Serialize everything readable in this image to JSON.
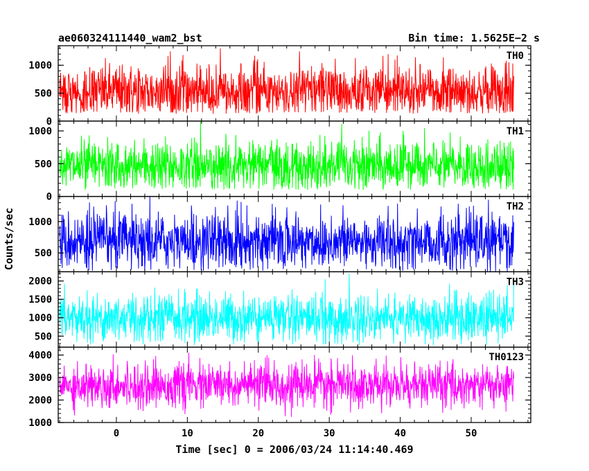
{
  "header": {
    "title": "ae060324111440_wam2_bst",
    "bin_time": "Bin time: 1.5625E−2 s"
  },
  "chart_data": {
    "type": "line",
    "title": "ae060324111440_wam2_bst",
    "xlabel": "Time [sec] 0 = 2006/03/24 11:14:40.469",
    "ylabel": "Counts/sec",
    "xlim": [
      -8.2,
      58.4
    ],
    "x_data_range": [
      -8,
      56
    ],
    "x_ticks": [
      0,
      10,
      20,
      30,
      40,
      50
    ],
    "x_tick_labels": [
      "0",
      "10",
      "20",
      "30",
      "40",
      "50"
    ],
    "x_minor_step": 2,
    "panels": [
      {
        "name": "TH0",
        "color": "#ff0000",
        "ylim": [
          0,
          1350
        ],
        "y_ticks": [
          0,
          500,
          1000
        ],
        "y_tick_labels": [
          "0",
          "500",
          "1000"
        ],
        "minor_step": 100,
        "stats": {
          "mean": 530,
          "sigma": 240,
          "min": 130,
          "max": 1350
        }
      },
      {
        "name": "TH1",
        "color": "#00ff00",
        "ylim": [
          0,
          1150
        ],
        "y_ticks": [
          0,
          500,
          1000
        ],
        "y_tick_labels": [
          "0",
          "500",
          "1000"
        ],
        "minor_step": 100,
        "stats": {
          "mean": 460,
          "sigma": 200,
          "min": 100,
          "max": 1150
        }
      },
      {
        "name": "TH2",
        "color": "#0000ff",
        "ylim": [
          200,
          1400
        ],
        "y_ticks": [
          500,
          1000
        ],
        "y_tick_labels": [
          "500",
          "1000"
        ],
        "minor_step": 100,
        "stats": {
          "mean": 680,
          "sigma": 230,
          "min": 200,
          "max": 1400
        }
      },
      {
        "name": "TH3",
        "color": "#00ffff",
        "ylim": [
          200,
          2250
        ],
        "y_ticks": [
          500,
          1000,
          1500,
          2000
        ],
        "y_tick_labels": [
          "500",
          "1000",
          "1500",
          "2000"
        ],
        "minor_step": 100,
        "stats": {
          "mean": 1000,
          "sigma": 330,
          "min": 250,
          "max": 2200
        }
      },
      {
        "name": "TH0123",
        "color": "#ff00ff",
        "ylim": [
          1000,
          4350
        ],
        "y_ticks": [
          1000,
          2000,
          3000,
          4000
        ],
        "y_tick_labels": [
          "1000",
          "2000",
          "3000",
          "4000"
        ],
        "minor_step": 200,
        "stats": {
          "mean": 2650,
          "sigma": 480,
          "min": 1000,
          "max": 4300
        }
      }
    ]
  }
}
